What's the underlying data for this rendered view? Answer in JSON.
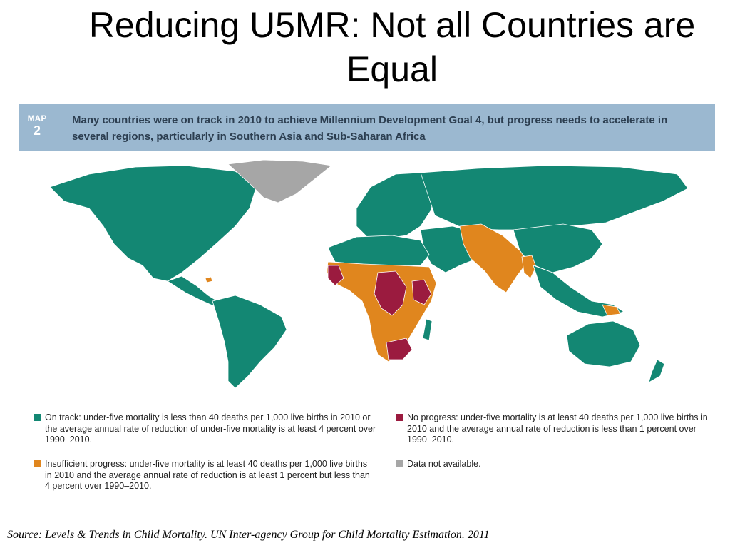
{
  "title": "Reducing U5MR: Not all Countries are Equal",
  "map_header": {
    "label_word": "MAP",
    "label_number": "2",
    "heading": "Many countries were on track in 2010 to achieve Millennium Development Goal 4, but progress needs to accelerate in several regions, particularly in Southern Asia and Sub-Saharan Africa"
  },
  "colors": {
    "on_track": "#138773",
    "insufficient": "#e0861e",
    "no_progress": "#9b1b3f",
    "not_available": "#a6a6a6",
    "header_band": "#9bb8d0"
  },
  "legend": {
    "on_track": "On track: under-five mortality is less than 40 deaths per 1,000 live births in 2010 or the average annual rate of reduction of under-five mortality is at least 4 percent over 1990–2010.",
    "insufficient": "Insufficient progress: under-five mortality is at least 40 deaths per 1,000 live births in 2010 and the average annual rate of reduction is at least 1 percent but less than 4 percent over 1990–2010.",
    "no_progress": "No progress: under-five mortality is at least 40 deaths per 1,000 live births in 2010 and the average annual rate of reduction is less than 1 percent over 1990–2010.",
    "not_available": "Data not available."
  },
  "source": "Source: Levels & Trends in Child Mortality. UN Inter-agency Group for Child Mortality Estimation. 2011"
}
